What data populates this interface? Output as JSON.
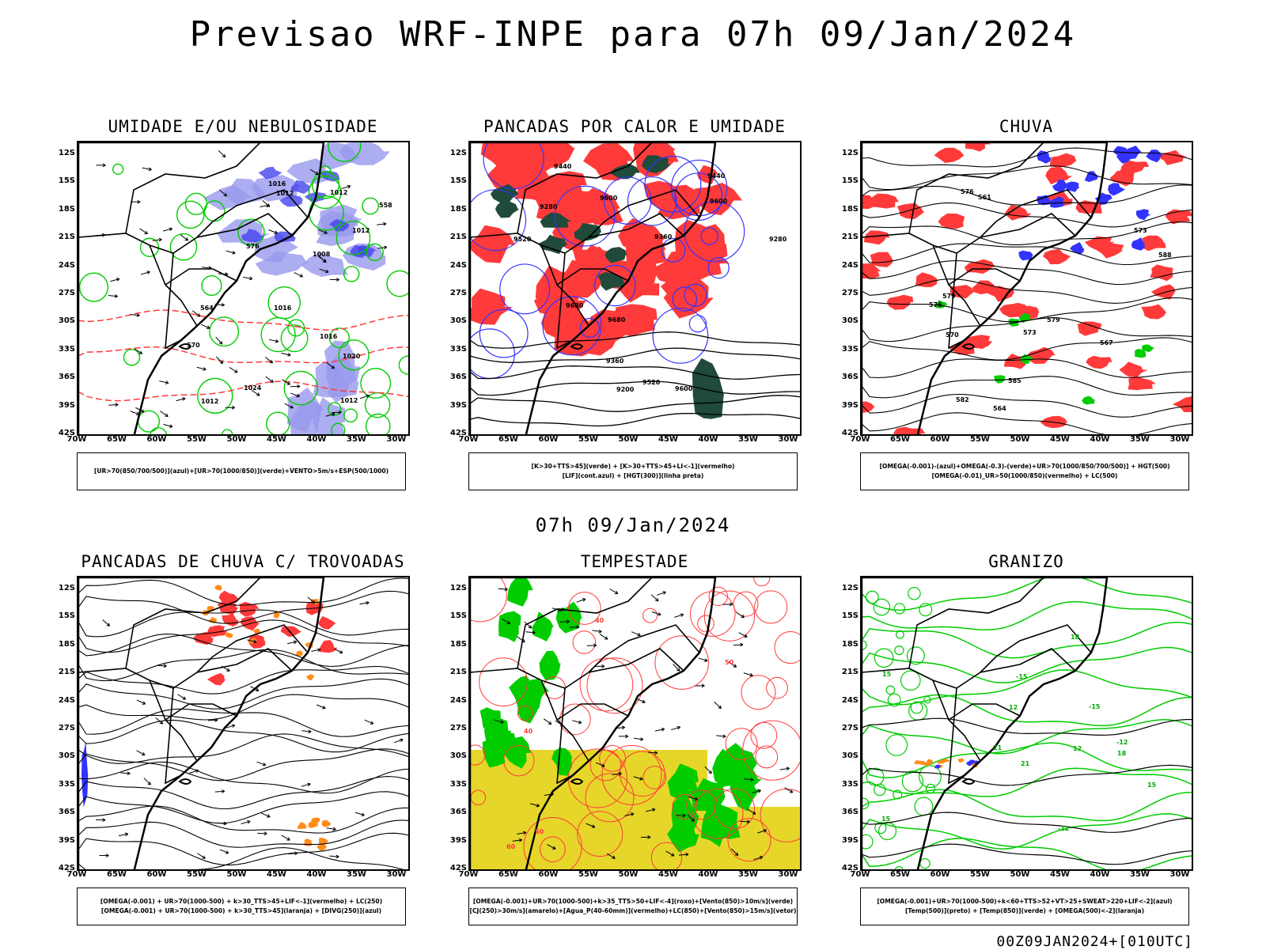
{
  "header": {
    "title": "Previsao WRF-INPE  para 07h 09/Jan/2024"
  },
  "mid_date": "07h 09/Jan/2024",
  "footer": {
    "run": "00Z09JAN2024+[010UTC]"
  },
  "axes": {
    "lat_labels": [
      "12S",
      "15S",
      "18S",
      "21S",
      "24S",
      "27S",
      "30S",
      "33S",
      "36S",
      "39S",
      "42S"
    ],
    "lon_labels": [
      "70W",
      "65W",
      "60W",
      "55W",
      "50W",
      "45W",
      "40W",
      "35W",
      "30W"
    ]
  },
  "colors": {
    "green": "#00cc00",
    "red": "#ff3a3a",
    "blue": "#3333ff",
    "lavender": "#9999ee",
    "darkgreen": "#204a3a",
    "orange": "#ff8c1a",
    "yellow": "#e6d62a",
    "black": "#000000"
  },
  "panels": [
    {
      "id": "umidade",
      "title": "UMIDADE E/OU NEBULOSIDADE",
      "legend": [
        "[UR>70(850/700/500)](azul)+[UR>70(1000/850)](verde)+VENTO>5m/s+ESP(500/1000)"
      ],
      "contour_labels": [
        "1012",
        "1016",
        "1012",
        "1016",
        "1012",
        "1012",
        "1012",
        "1016",
        "1008",
        "570",
        "576",
        "564",
        "558",
        "1020",
        "1024"
      ]
    },
    {
      "id": "pancadas-calor",
      "title": "PANCADAS POR CALOR E UMIDADE",
      "legend": [
        "[K>30+TTS>45](verde) + [K>30+TTS>45+LI<-1](vermelho)",
        "[LIF](cont.azul) + [HGT(300)](linha preta)"
      ],
      "contour_labels": [
        "9680",
        "9680",
        "9600",
        "9600",
        "9520",
        "9440",
        "9360",
        "9280",
        "9200",
        "9600",
        "9520",
        "9440",
        "9360",
        "9280"
      ]
    },
    {
      "id": "chuva",
      "title": "CHUVA",
      "legend": [
        "[OMEGA(-0.001)-(azul)+OMEGA(-0.3)-(verde)+UR>70(1000/850/700/500)] + HGT(500)",
        "[OMEGA(-0.01)_UR>50(1000/850)(vermelho) + LC(500)"
      ],
      "contour_labels": [
        "588",
        "585",
        "582",
        "579",
        "576",
        "573",
        "570",
        "567",
        "564",
        "561",
        "579",
        "576",
        "573"
      ]
    },
    {
      "id": "pancadas-trovoadas",
      "title": "PANCADAS DE CHUVA C/ TROVOADAS",
      "legend": [
        "[OMEGA(-0.001) + UR>70(1000-500) + k>30_TTS>45+LIF<-1](vermelho) + LC(250)",
        "[OMEGA(-0.001) + UR>70(1000-500) + k>30_TTS>45](laranja) + [DIVG(250)](azul)"
      ],
      "contour_labels": []
    },
    {
      "id": "tempestade",
      "title": "TEMPESTADE",
      "legend": [
        "[OMEGA(-0.001)+UR>70(1000-500)+k>35_TTS>50+LIF<-4](roxo)+[Vento(850)>10m/s](verde)",
        "[CJ(250)>30m/s](amarelo)+[Agua_P(40-60mm)](vermelho)+LC(850)+[Vento(850)>15m/s](vetor)"
      ],
      "contour_labels": [
        "50",
        "40",
        "50",
        "60",
        "40"
      ]
    },
    {
      "id": "granizo",
      "title": "GRANIZO",
      "legend": [
        "[OMEGA(-0.001)+UR>70(1000-500)+k<60+TTS>52+VT>25+SWEAT>220+LIF<-2](azul)",
        "[Temp(500)](preto) + [Temp(850)](verde) + [OMEGA(500)<-2](laranja)"
      ],
      "contour_labels": [
        "15",
        "18",
        "21",
        "15",
        "12",
        "-12",
        "-15",
        "-12",
        "-15",
        "12",
        "15",
        "18",
        "21"
      ]
    }
  ]
}
